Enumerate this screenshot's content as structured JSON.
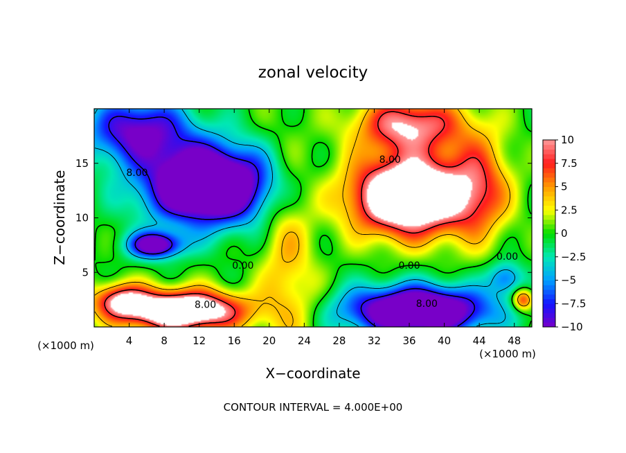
{
  "chart_data": {
    "type": "heatmap",
    "title": "zonal velocity",
    "xlabel": "X−coordinate",
    "ylabel": "Z−coordinate",
    "x_unit_left": "(×1000 m)",
    "x_unit_right": "(×1000 m)",
    "footer": "CONTOUR INTERVAL = 4.000E+00",
    "xlim": [
      0,
      50
    ],
    "ylim": [
      0,
      20
    ],
    "x_ticks": [
      4,
      8,
      12,
      16,
      20,
      24,
      28,
      32,
      36,
      40,
      44,
      48
    ],
    "x_tick_labels": [
      "4",
      "8",
      "12",
      "16",
      "20",
      "24",
      "28",
      "32",
      "36",
      "40",
      "44",
      "48"
    ],
    "y_ticks": [
      5,
      10,
      15
    ],
    "y_tick_labels": [
      "5",
      "10",
      "15"
    ],
    "colorbar": {
      "min": -10,
      "max": 10,
      "tick_values": [
        10,
        7.5,
        5,
        2.5,
        0,
        -2.5,
        -5,
        -7.5,
        -10
      ],
      "tick_labels": [
        "10",
        "7.5",
        "5",
        "2.5",
        "0",
        "−2.5",
        "−5",
        "−7.5",
        "−10"
      ],
      "colors": [
        "#ff9a9a",
        "#ff1c1c",
        "#ff9a00",
        "#ffff00",
        "#00dc00",
        "#00e8b4",
        "#00a0ff",
        "#1414ff",
        "#7800c8"
      ]
    },
    "contour_labels": [
      {
        "text": "8.00",
        "x": 4.9,
        "z": 14.1
      },
      {
        "text": "8.00",
        "x": 33.8,
        "z": 15.3
      },
      {
        "text": "0.00",
        "x": 17.0,
        "z": 5.6
      },
      {
        "text": "0.00",
        "x": 36.0,
        "z": 5.6
      },
      {
        "text": "0.00",
        "x": 47.2,
        "z": 6.4
      },
      {
        "text": "8.00",
        "x": 12.7,
        "z": 2.0
      },
      {
        "text": "8.00",
        "x": 38.0,
        "z": 2.1
      }
    ],
    "features": [
      {
        "x": 13,
        "z": 13,
        "sx": 7,
        "sz": 3.5,
        "amp": -18
      },
      {
        "x": 7,
        "z": 7.5,
        "sx": 3,
        "sz": 1.2,
        "amp": -12
      },
      {
        "x": 36,
        "z": 12,
        "sx": 6.5,
        "sz": 3.5,
        "amp": 18
      },
      {
        "x": 36,
        "z": 18.5,
        "sx": 6,
        "sz": 2.5,
        "amp": 10
      },
      {
        "x": 44,
        "z": 13,
        "sx": 3.5,
        "sz": 5,
        "amp": 6
      },
      {
        "x": 10,
        "z": 1.5,
        "sx": 7,
        "sz": 1.8,
        "amp": 16
      },
      {
        "x": 3,
        "z": 2.5,
        "sx": 3,
        "sz": 1.5,
        "amp": 8
      },
      {
        "x": 37,
        "z": 1.5,
        "sx": 8,
        "sz": 2.2,
        "amp": -16
      },
      {
        "x": 5,
        "z": 18,
        "sx": 6,
        "sz": 3,
        "amp": -10
      },
      {
        "x": 22,
        "z": 6,
        "sx": 3,
        "sz": 10,
        "amp": 4
      },
      {
        "x": 25,
        "z": 2,
        "sx": 2,
        "sz": 3,
        "amp": 1
      },
      {
        "x": 49,
        "z": 2.5,
        "sx": 1.2,
        "sz": 1,
        "amp": 8
      },
      {
        "x": 47,
        "z": 4.5,
        "sx": 2,
        "sz": 1.5,
        "amp": -6
      }
    ],
    "grid": false
  }
}
